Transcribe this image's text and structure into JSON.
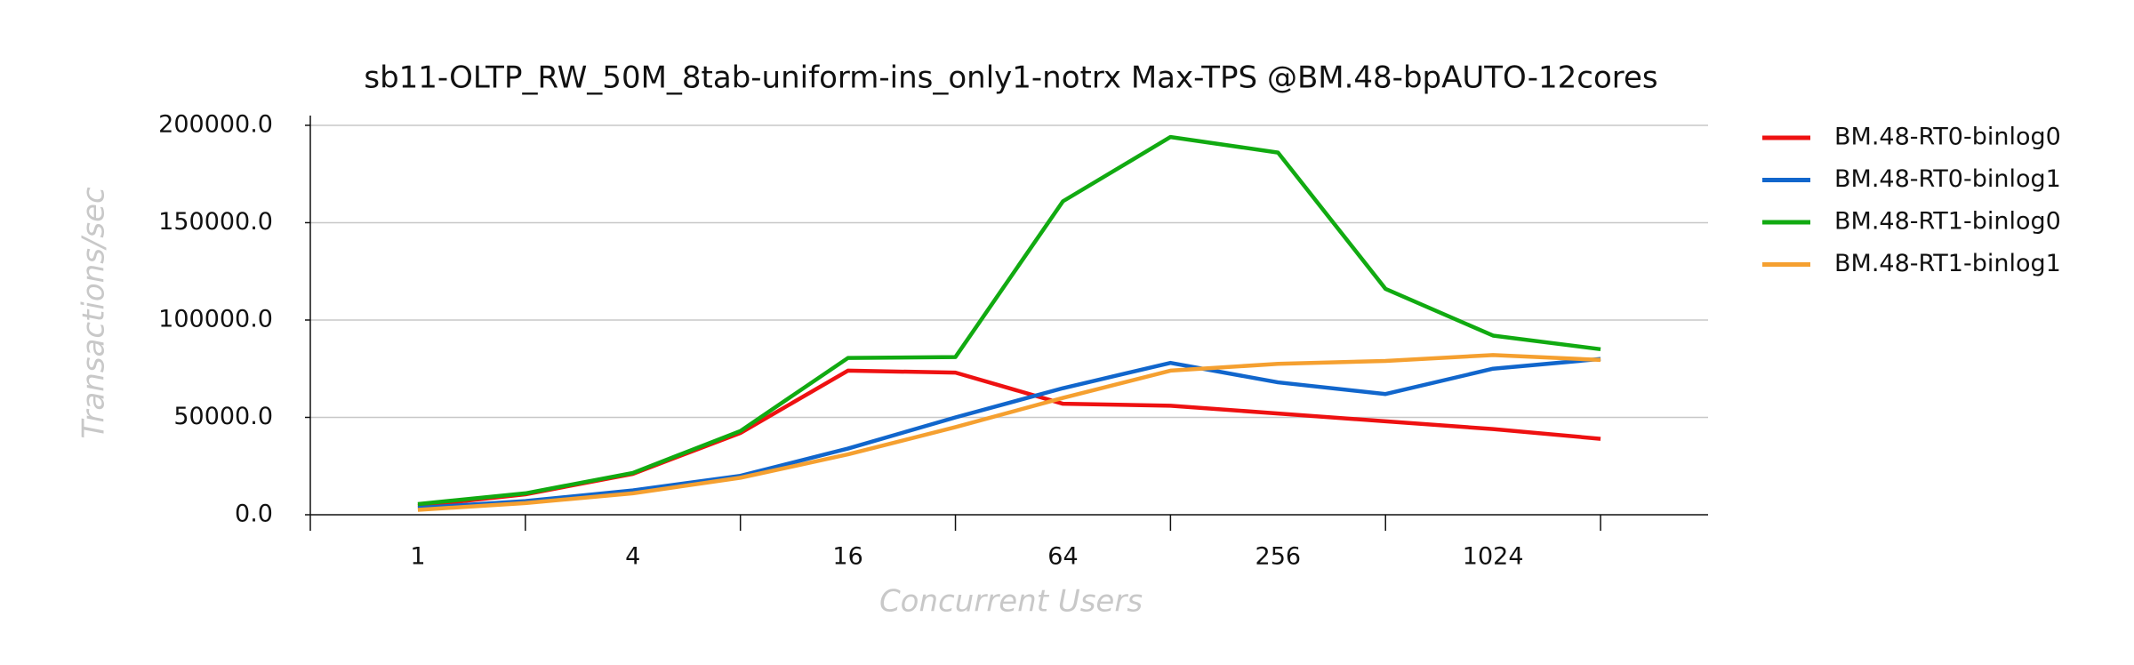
{
  "chart_data": {
    "type": "line",
    "title": "sb11-OLTP_RW_50M_8tab-uniform-ins_only1-notrx Max-TPS @BM.48-bpAUTO-12cores",
    "x_label": "Concurrent Users",
    "y_label": "Transactions/sec",
    "categories": [
      "1",
      null,
      "4",
      null,
      "16",
      null,
      "64",
      null,
      "256",
      null,
      "1024",
      null
    ],
    "series": [
      {
        "name": "BM.48-RT0-binlog0",
        "color": "#ee1111",
        "values": [
          4500,
          10500,
          21000,
          42000,
          74000,
          73000,
          57000,
          56000,
          52000,
          48000,
          44000,
          39000
        ]
      },
      {
        "name": "BM.48-RT0-binlog1",
        "color": "#1166cc",
        "values": [
          3500,
          7000,
          12500,
          20000,
          34000,
          50000,
          65000,
          78000,
          68000,
          62000,
          75000,
          80000
        ]
      },
      {
        "name": "BM.48-RT1-binlog0",
        "color": "#11aa11",
        "values": [
          5500,
          11000,
          21500,
          43000,
          80500,
          81000,
          161000,
          194000,
          186000,
          116000,
          92000,
          85000
        ]
      },
      {
        "name": "BM.48-RT1-binlog1",
        "color": "#f5a030",
        "values": [
          2500,
          6000,
          11000,
          19000,
          31000,
          45000,
          60000,
          74000,
          77500,
          79000,
          82000,
          79500
        ]
      }
    ],
    "ylim": [
      0,
      205000
    ],
    "yticks": [
      {
        "value": 0,
        "label": "0.0"
      },
      {
        "value": 50000,
        "label": "50000.0"
      },
      {
        "value": 100000,
        "label": "100000.0"
      },
      {
        "value": 150000,
        "label": "150000.0"
      },
      {
        "value": 200000,
        "label": "200000.0"
      }
    ],
    "grid": true,
    "legend": "right"
  }
}
